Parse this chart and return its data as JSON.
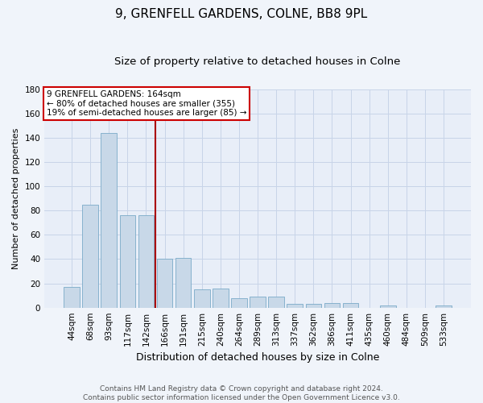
{
  "title": "9, GRENFELL GARDENS, COLNE, BB8 9PL",
  "subtitle": "Size of property relative to detached houses in Colne",
  "xlabel": "Distribution of detached houses by size in Colne",
  "ylabel": "Number of detached properties",
  "bar_labels": [
    "44sqm",
    "68sqm",
    "93sqm",
    "117sqm",
    "142sqm",
    "166sqm",
    "191sqm",
    "215sqm",
    "240sqm",
    "264sqm",
    "289sqm",
    "313sqm",
    "337sqm",
    "362sqm",
    "386sqm",
    "411sqm",
    "435sqm",
    "460sqm",
    "484sqm",
    "509sqm",
    "533sqm"
  ],
  "bar_values": [
    17,
    85,
    144,
    76,
    76,
    40,
    41,
    15,
    16,
    8,
    9,
    9,
    3,
    3,
    4,
    4,
    0,
    2,
    0,
    0,
    2
  ],
  "bar_color": "#c8d8e8",
  "bar_edge_color": "#7aaac8",
  "vline_x_index": 5,
  "vline_color": "#aa0000",
  "annotation_lines": [
    "9 GRENFELL GARDENS: 164sqm",
    "← 80% of detached houses are smaller (355)",
    "19% of semi-detached houses are larger (85) →"
  ],
  "annotation_box_color": "#ffffff",
  "annotation_box_edge": "#cc0000",
  "ylim": [
    0,
    180
  ],
  "yticks": [
    0,
    20,
    40,
    60,
    80,
    100,
    120,
    140,
    160,
    180
  ],
  "grid_color": "#c8d4e8",
  "bg_color": "#e8eef8",
  "fig_bg_color": "#f0f4fa",
  "footnote": "Contains HM Land Registry data © Crown copyright and database right 2024.\nContains public sector information licensed under the Open Government Licence v3.0.",
  "title_fontsize": 11,
  "subtitle_fontsize": 9.5,
  "xlabel_fontsize": 9,
  "ylabel_fontsize": 8,
  "tick_fontsize": 7.5,
  "annotation_fontsize": 7.5,
  "footnote_fontsize": 6.5
}
